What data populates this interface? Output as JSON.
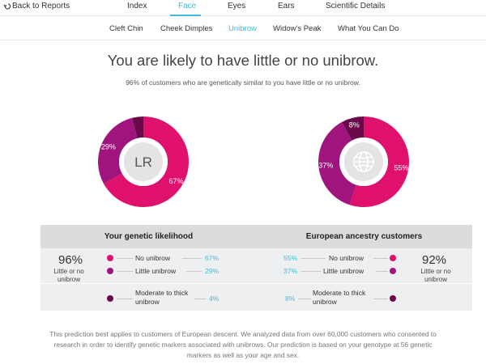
{
  "nav": {
    "back_label": "Back to Reports",
    "tabs": [
      {
        "label": "Index",
        "active": false
      },
      {
        "label": "Face",
        "active": true
      },
      {
        "label": "Eyes",
        "active": false
      },
      {
        "label": "Ears",
        "active": false
      },
      {
        "label": "Scientific Details",
        "active": false
      }
    ]
  },
  "subnav": {
    "items": [
      {
        "label": "Cleft Chin",
        "active": false
      },
      {
        "label": "Cheek Dimples",
        "active": false
      },
      {
        "label": "Unibrow",
        "active": true
      },
      {
        "label": "Widow's Peak",
        "active": false
      },
      {
        "label": "What You Can Do",
        "active": false
      }
    ]
  },
  "headline": "You are likely to have little or no unibrow.",
  "subhead": "96% of customers who are genetically similar to you have little or no unibrow.",
  "colors": {
    "accent": "#3dbce0",
    "no_unibrow": "#e0116c",
    "little_unibrow": "#a0147e",
    "moderate_unibrow": "#6b0a4a"
  },
  "donuts": {
    "personal": {
      "center_text": "LR",
      "slices": [
        {
          "label": "67%",
          "value": 67,
          "color": "#e0116c"
        },
        {
          "label": "29%",
          "value": 29,
          "color": "#a0147e"
        },
        {
          "label": "",
          "value": 4,
          "color": "#6b0a4a"
        }
      ]
    },
    "ancestry": {
      "center_icon": "globe-icon",
      "slices": [
        {
          "label": "55%",
          "value": 55,
          "color": "#e0116c"
        },
        {
          "label": "37%",
          "value": 37,
          "color": "#a0147e"
        },
        {
          "label": "8%",
          "value": 8,
          "color": "#6b0a4a"
        }
      ]
    }
  },
  "panels": {
    "personal": {
      "title": "Your genetic likelihood",
      "big_value": "96%",
      "big_sub1": "Little or no",
      "big_sub2": "unibrow",
      "rows": [
        {
          "label": "No unibrow",
          "pct": "67%"
        },
        {
          "label": "Little unibrow",
          "pct": "29%"
        },
        {
          "label1": "Moderate to thick",
          "label2": "unibrow",
          "pct": "4%"
        }
      ]
    },
    "ancestry": {
      "title": "European ancestry customers",
      "big_value": "92%",
      "big_sub1": "Little or no",
      "big_sub2": "unibrow",
      "rows": [
        {
          "label": "No unibrow",
          "pct": "55%"
        },
        {
          "label": "Little unibrow",
          "pct": "37%"
        },
        {
          "label1": "Moderate to thick",
          "label2": "unibrow",
          "pct": "8%"
        }
      ]
    }
  },
  "footer": {
    "line1": "This prediction best applies to customers of European descent. We analyzed data from over 60,000 customers who consented to",
    "line2": "research in order to identify genetic markers associated with unibrows. Our prediction is based on your genotype at 56 genetic",
    "line3": "markers as well as your age and sex."
  }
}
